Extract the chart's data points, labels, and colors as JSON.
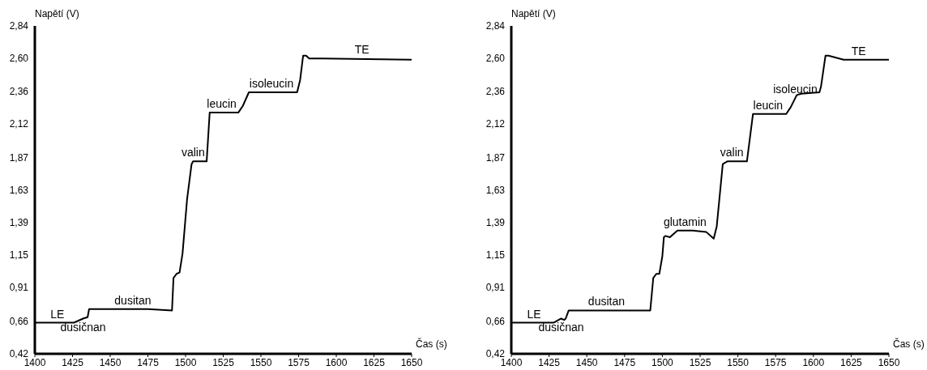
{
  "chart_data": [
    {
      "type": "line",
      "xlabel": "Čas (s)",
      "ylabel": "Napětí (V)",
      "xlim": [
        1400,
        1650
      ],
      "ylim": [
        0.42,
        2.84
      ],
      "xticks": [
        1400,
        1425,
        1450,
        1475,
        1500,
        1525,
        1550,
        1575,
        1600,
        1625,
        1650
      ],
      "yticks": [
        {
          "value": 0.42,
          "label": "0,42"
        },
        {
          "value": 0.66,
          "label": "0,66"
        },
        {
          "value": 0.91,
          "label": "0,91"
        },
        {
          "value": 1.15,
          "label": "1,15"
        },
        {
          "value": 1.39,
          "label": "1,39"
        },
        {
          "value": 1.63,
          "label": "1,63"
        },
        {
          "value": 1.87,
          "label": "1,87"
        },
        {
          "value": 2.12,
          "label": "2,12"
        },
        {
          "value": 2.36,
          "label": "2,36"
        },
        {
          "value": 2.6,
          "label": "2,60"
        },
        {
          "value": 2.84,
          "label": "2,84"
        }
      ],
      "series": [
        {
          "color": "#000000",
          "x": [
            1400,
            1426,
            1432,
            1435,
            1436,
            1475,
            1491,
            1492,
            1494,
            1496,
            1498,
            1501,
            1504,
            1505,
            1514,
            1516,
            1518,
            1534,
            1535,
            1538,
            1542,
            1574,
            1576,
            1578,
            1580,
            1582,
            1591,
            1650
          ],
          "values": [
            0.65,
            0.65,
            0.68,
            0.69,
            0.75,
            0.75,
            0.74,
            0.98,
            1.01,
            1.02,
            1.16,
            1.56,
            1.82,
            1.84,
            1.84,
            2.2,
            2.2,
            2.2,
            2.2,
            2.25,
            2.35,
            2.35,
            2.44,
            2.62,
            2.62,
            2.6,
            2.6,
            2.59
          ]
        }
      ],
      "annotations": [
        {
          "text": "LE",
          "x": 1415,
          "y": 0.65
        },
        {
          "text": "dusičnan",
          "x": 1432,
          "y": 0.68
        },
        {
          "text": "dusitan",
          "x": 1465,
          "y": 0.75
        },
        {
          "text": "valin",
          "x": 1505,
          "y": 1.84
        },
        {
          "text": "leucin",
          "x": 1524,
          "y": 2.2
        },
        {
          "text": "isoleucin",
          "x": 1557,
          "y": 2.35
        },
        {
          "text": "TE",
          "x": 1617,
          "y": 2.6
        }
      ]
    },
    {
      "type": "line",
      "xlabel": "Čas (s)",
      "ylabel": "Napětí (V)",
      "xlim": [
        1400,
        1650
      ],
      "ylim": [
        0.42,
        2.84
      ],
      "xticks": [
        1400,
        1425,
        1450,
        1475,
        1500,
        1525,
        1550,
        1575,
        1600,
        1625,
        1650
      ],
      "yticks": [
        {
          "value": 0.42,
          "label": "0,42"
        },
        {
          "value": 0.66,
          "label": "0,66"
        },
        {
          "value": 0.91,
          "label": "0,91"
        },
        {
          "value": 1.15,
          "label": "1,15"
        },
        {
          "value": 1.39,
          "label": "1,39"
        },
        {
          "value": 1.63,
          "label": "1,63"
        },
        {
          "value": 1.87,
          "label": "1,87"
        },
        {
          "value": 2.12,
          "label": "2,12"
        },
        {
          "value": 2.36,
          "label": "2,36"
        },
        {
          "value": 2.6,
          "label": "2,60"
        },
        {
          "value": 2.84,
          "label": "2,84"
        }
      ],
      "series": [
        {
          "color": "#000000",
          "x": [
            1400,
            1428,
            1433,
            1435,
            1436,
            1438,
            1485,
            1492,
            1494,
            1496,
            1498,
            1500,
            1501,
            1502,
            1505,
            1510,
            1520,
            1529,
            1534,
            1536,
            1540,
            1543,
            1556,
            1560,
            1582,
            1585,
            1589,
            1592,
            1604,
            1605,
            1608,
            1610,
            1620,
            1650
          ],
          "values": [
            0.65,
            0.65,
            0.68,
            0.67,
            0.68,
            0.74,
            0.74,
            0.74,
            0.98,
            1.01,
            1.01,
            1.14,
            1.28,
            1.29,
            1.28,
            1.33,
            1.33,
            1.32,
            1.27,
            1.36,
            1.82,
            1.84,
            1.84,
            2.19,
            2.19,
            2.24,
            2.33,
            2.34,
            2.35,
            2.39,
            2.62,
            2.62,
            2.59,
            2.59
          ]
        }
      ],
      "annotations": [
        {
          "text": "LE",
          "x": 1415,
          "y": 0.65
        },
        {
          "text": "dusičnan",
          "x": 1433,
          "y": 0.68
        },
        {
          "text": "dusitan",
          "x": 1463,
          "y": 0.74
        },
        {
          "text": "glutamin",
          "x": 1515,
          "y": 1.33
        },
        {
          "text": "valin",
          "x": 1546,
          "y": 1.84
        },
        {
          "text": "leucin",
          "x": 1570,
          "y": 2.19
        },
        {
          "text": "isoleucin",
          "x": 1588,
          "y": 2.31
        },
        {
          "text": "TE",
          "x": 1630,
          "y": 2.59
        }
      ]
    }
  ]
}
